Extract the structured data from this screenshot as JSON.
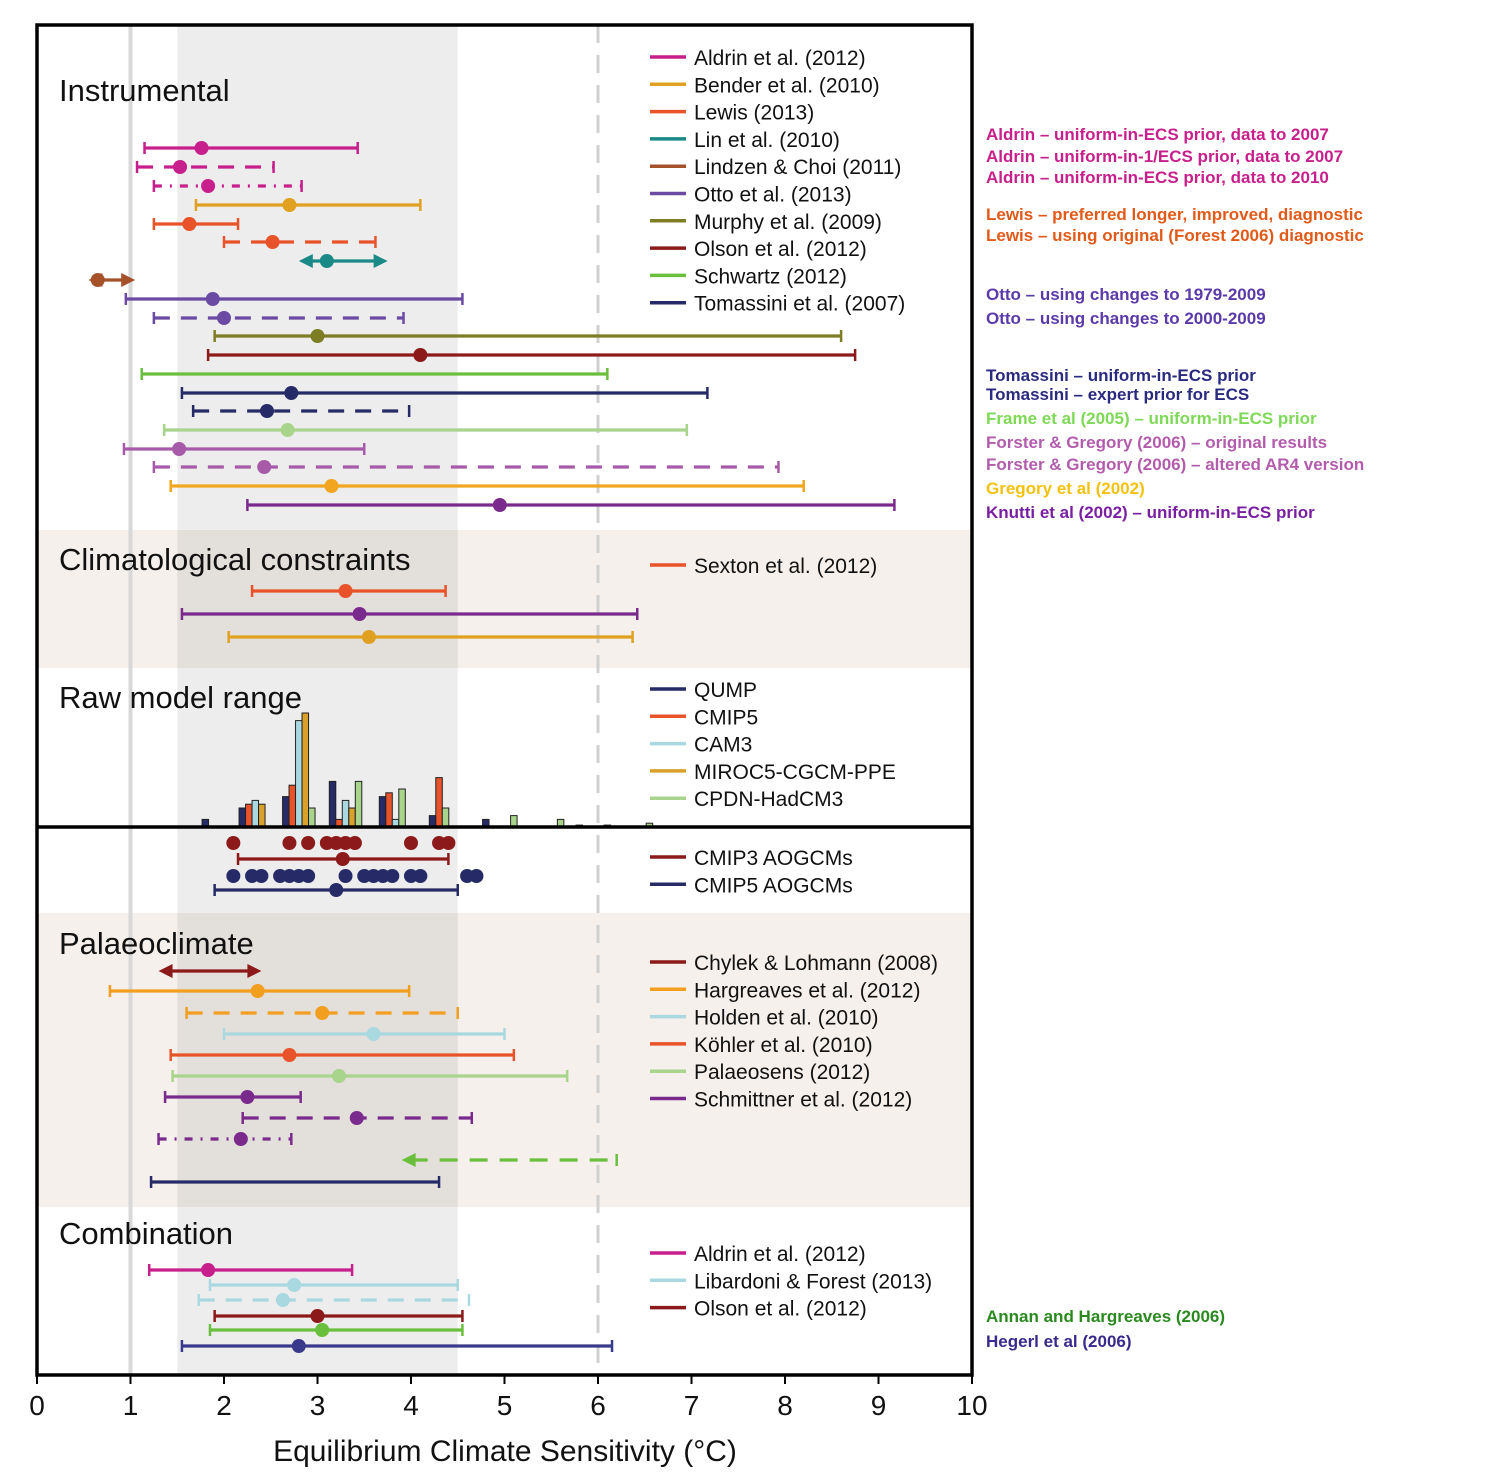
{
  "chart_data": {
    "type": "interval-plot",
    "xlabel": "Equilibrium Climate Sensitivity (°C)",
    "xlim": [
      0,
      10
    ],
    "xticks": [
      0,
      1,
      2,
      3,
      4,
      5,
      6,
      7,
      8,
      9,
      10
    ],
    "likely_range_shading": [
      1.5,
      4.5
    ],
    "reference_lines": [
      1,
      6
    ],
    "sections": [
      {
        "id": "instrumental",
        "title": "Instrumental",
        "background": "#ffffff",
        "legend": [
          {
            "label": "Aldrin et al. (2012)",
            "color": "#c71f8c"
          },
          {
            "label": "Bender et al. (2010)",
            "color": "#e0a020"
          },
          {
            "label": "Lewis (2013)",
            "color": "#e8532a"
          },
          {
            "label": "Lin et al. (2010)",
            "color": "#1a8a86"
          },
          {
            "label": "Lindzen & Choi (2011)",
            "color": "#a5522a"
          },
          {
            "label": "Otto et al. (2013)",
            "color": "#6a4aa3"
          },
          {
            "label": "Murphy et al. (2009)",
            "color": "#7d7d24"
          },
          {
            "label": "Olson et al. (2012)",
            "color": "#8c1a1a"
          },
          {
            "label": "Schwartz (2012)",
            "color": "#6abf3c"
          },
          {
            "label": "Tomassini et al. (2007)",
            "color": "#262a66"
          }
        ]
      },
      {
        "id": "climatological",
        "title": "Climatological constraints",
        "background": "#f5f0ec",
        "legend": [
          {
            "label": "Sexton et al. (2012)",
            "color": "#e8532a"
          }
        ]
      },
      {
        "id": "raw",
        "title": "Raw model range",
        "background": "#ffffff",
        "legend": [
          {
            "label": "QUMP",
            "color": "#262a66"
          },
          {
            "label": "CMIP5",
            "color": "#e8532a"
          },
          {
            "label": "CAM3",
            "color": "#aad8e0"
          },
          {
            "label": "MIROC5-CGCM-PPE",
            "color": "#d9a02a"
          },
          {
            "label": "CPDN-HadCM3",
            "color": "#a8d48c"
          }
        ],
        "extra_legend": [
          {
            "label": "CMIP3 AOGCMs",
            "color": "#8c1a1a"
          },
          {
            "label": "CMIP5 AOGCMs",
            "color": "#262a66"
          }
        ]
      },
      {
        "id": "palaeo",
        "title": "Palaeoclimate",
        "background": "#f5f0ec",
        "legend": [
          {
            "label": "Chylek & Lohmann (2008)",
            "color": "#8c1a1a"
          },
          {
            "label": "Hargreaves et al. (2012)",
            "color": "#f29e1f"
          },
          {
            "label": "Holden et al. (2010)",
            "color": "#aad8e0"
          },
          {
            "label": "Köhler et al. (2010)",
            "color": "#e8532a"
          },
          {
            "label": "Palaeosens (2012)",
            "color": "#a8d48c"
          },
          {
            "label": "Schmittner et al. (2012)",
            "color": "#7a2a8c"
          }
        ]
      },
      {
        "id": "combination",
        "title": "Combination",
        "background": "#ffffff",
        "legend": [
          {
            "label": "Aldrin et al. (2012)",
            "color": "#c71f8c"
          },
          {
            "label": "Libardoni & Forest (2013)",
            "color": "#aad8e0"
          },
          {
            "label": "Olson et al. (2012)",
            "color": "#8c1a1a"
          }
        ]
      }
    ],
    "ranges": [
      {
        "section": "instrumental",
        "row": 1,
        "color": "#c71f8c",
        "style": "solid",
        "lo": 1.15,
        "best": 1.76,
        "hi": 3.43
      },
      {
        "section": "instrumental",
        "row": 2,
        "color": "#c71f8c",
        "style": "dashed",
        "lo": 1.07,
        "best": 1.53,
        "hi": 2.53
      },
      {
        "section": "instrumental",
        "row": 3,
        "color": "#c71f8c",
        "style": "dashdot",
        "lo": 1.25,
        "best": 1.83,
        "hi": 2.83
      },
      {
        "section": "instrumental",
        "row": 4,
        "color": "#e0a020",
        "style": "solid",
        "lo": 1.7,
        "best": 2.7,
        "hi": 4.1
      },
      {
        "section": "instrumental",
        "row": 5,
        "color": "#e8532a",
        "style": "solid",
        "lo": 1.25,
        "best": 1.63,
        "hi": 2.15
      },
      {
        "section": "instrumental",
        "row": 6,
        "color": "#e8532a",
        "style": "dashed",
        "lo": 2.0,
        "best": 2.52,
        "hi": 3.62
      },
      {
        "section": "instrumental",
        "row": 7,
        "color": "#1a8a86",
        "style": "arrows",
        "lo": 2.8,
        "best": 3.1,
        "hi": 3.75
      },
      {
        "section": "instrumental",
        "row": 8,
        "color": "#a5522a",
        "style": "arrows",
        "lo": 0.55,
        "best": 0.65,
        "hi": 1.05
      },
      {
        "section": "instrumental",
        "row": 9,
        "color": "#6a4aa3",
        "style": "solid",
        "lo": 0.95,
        "best": 1.88,
        "hi": 4.55
      },
      {
        "section": "instrumental",
        "row": 10,
        "color": "#6a4aa3",
        "style": "dashed",
        "lo": 1.25,
        "best": 2.0,
        "hi": 3.92
      },
      {
        "section": "instrumental",
        "row": 11,
        "color": "#7d7d24",
        "style": "solid",
        "lo": 1.9,
        "best": 3.0,
        "hi": 8.6
      },
      {
        "section": "instrumental",
        "row": 12,
        "color": "#8c1a1a",
        "style": "solid",
        "lo": 1.83,
        "best": 4.1,
        "hi": 8.75
      },
      {
        "section": "instrumental",
        "row": 13,
        "color": "#6abf3c",
        "style": "solid",
        "lo": 1.12,
        "best": null,
        "hi": 6.1
      },
      {
        "section": "instrumental",
        "row": 14,
        "color": "#262a66",
        "style": "solid",
        "lo": 1.55,
        "best": 2.72,
        "hi": 7.17
      },
      {
        "section": "instrumental",
        "row": 15,
        "color": "#262a66",
        "style": "dashed",
        "lo": 1.67,
        "best": 2.46,
        "hi": 3.98
      },
      {
        "section": "instrumental",
        "row": 16,
        "color": "#a8d48c",
        "style": "solid",
        "lo": 1.36,
        "best": 2.68,
        "hi": 6.95
      },
      {
        "section": "instrumental",
        "row": 17,
        "color": "#a65aa8",
        "style": "solid",
        "lo": 0.93,
        "best": 1.52,
        "hi": 3.5
      },
      {
        "section": "instrumental",
        "row": 18,
        "color": "#a65aa8",
        "style": "dashed",
        "lo": 1.25,
        "best": 2.43,
        "hi": 7.93
      },
      {
        "section": "instrumental",
        "row": 19,
        "color": "#f2a51f",
        "style": "solid",
        "lo": 1.43,
        "best": 3.15,
        "hi": 8.2
      },
      {
        "section": "instrumental",
        "row": 20,
        "color": "#7a2a8c",
        "style": "solid",
        "lo": 2.25,
        "best": 4.95,
        "hi": 9.17
      },
      {
        "section": "climatological",
        "row": 1,
        "color": "#e8532a",
        "style": "solid",
        "lo": 2.3,
        "best": 3.3,
        "hi": 4.37
      },
      {
        "section": "climatological",
        "row": 2,
        "color": "#7a2a8c",
        "style": "solid",
        "lo": 1.55,
        "best": 3.45,
        "hi": 6.42
      },
      {
        "section": "climatological",
        "row": 3,
        "color": "#e0a020",
        "style": "solid",
        "lo": 2.05,
        "best": 3.55,
        "hi": 6.37
      },
      {
        "section": "raw",
        "row": 1,
        "color": "#8c1a1a",
        "style": "solid",
        "lo": 2.15,
        "best": 3.27,
        "hi": 4.4
      },
      {
        "section": "raw",
        "row": 2,
        "color": "#262a66",
        "style": "solid",
        "lo": 1.9,
        "best": 3.2,
        "hi": 4.5
      },
      {
        "section": "palaeo",
        "row": 1,
        "color": "#8c1a1a",
        "style": "arrows",
        "lo": 1.3,
        "best": null,
        "hi": 2.4
      },
      {
        "section": "palaeo",
        "row": 2,
        "color": "#f29e1f",
        "style": "solid",
        "lo": 0.78,
        "best": 2.36,
        "hi": 3.98
      },
      {
        "section": "palaeo",
        "row": 3,
        "color": "#f29e1f",
        "style": "dashed",
        "lo": 1.6,
        "best": 3.05,
        "hi": 4.5
      },
      {
        "section": "palaeo",
        "row": 4,
        "color": "#aad8e0",
        "style": "solid",
        "lo": 2.0,
        "best": 3.6,
        "hi": 5.0
      },
      {
        "section": "palaeo",
        "row": 5,
        "color": "#e8532a",
        "style": "solid",
        "lo": 1.43,
        "best": 2.7,
        "hi": 5.1
      },
      {
        "section": "palaeo",
        "row": 6,
        "color": "#a8d48c",
        "style": "solid",
        "lo": 1.45,
        "best": 3.23,
        "hi": 5.67
      },
      {
        "section": "palaeo",
        "row": 7,
        "color": "#7a2a8c",
        "style": "solid",
        "lo": 1.37,
        "best": 2.25,
        "hi": 2.82
      },
      {
        "section": "palaeo",
        "row": 8,
        "color": "#7a2a8c",
        "style": "dashed",
        "lo": 2.2,
        "best": 3.42,
        "hi": 4.65
      },
      {
        "section": "palaeo",
        "row": 9,
        "color": "#7a2a8c",
        "style": "dashdot",
        "lo": 1.3,
        "best": 2.18,
        "hi": 2.72
      },
      {
        "section": "palaeo",
        "row": 10,
        "color": "#6abf3c",
        "style": "dashed-left-arrow",
        "lo": 3.9,
        "best": null,
        "hi": 6.2
      },
      {
        "section": "palaeo",
        "row": 11,
        "color": "#262a66",
        "style": "solid",
        "lo": 1.22,
        "best": null,
        "hi": 4.3
      },
      {
        "section": "combination",
        "row": 1,
        "color": "#c71f8c",
        "style": "solid",
        "lo": 1.2,
        "best": 1.83,
        "hi": 3.37
      },
      {
        "section": "combination",
        "row": 2,
        "color": "#aad8e0",
        "style": "solid",
        "lo": 1.85,
        "best": 2.75,
        "hi": 4.5
      },
      {
        "section": "combination",
        "row": 3,
        "color": "#aad8e0",
        "style": "dashed",
        "lo": 1.73,
        "best": 2.63,
        "hi": 4.62
      },
      {
        "section": "combination",
        "row": 4,
        "color": "#8c1a1a",
        "style": "solid",
        "lo": 1.9,
        "best": 3.0,
        "hi": 4.55
      },
      {
        "section": "combination",
        "row": 5,
        "color": "#6abf3c",
        "style": "solid",
        "lo": 1.85,
        "best": 3.05,
        "hi": 4.55
      },
      {
        "section": "combination",
        "row": 6,
        "color": "#3a3a8c",
        "style": "solid",
        "lo": 1.55,
        "best": 2.8,
        "hi": 6.15
      }
    ],
    "histogram": {
      "series_order": [
        "QUMP",
        "CMIP5",
        "CAM3",
        "MIROC5-CGCM-PPE",
        "CPDN-HadCM3"
      ],
      "bins": [
        {
          "x": 1.8,
          "QUMP": 2
        },
        {
          "x": 2.3,
          "QUMP": 5,
          "CMIP5": 6,
          "CAM3": 7,
          "MIROC5-CGCM-PPE": 6
        },
        {
          "x": 2.8,
          "QUMP": 8,
          "CMIP5": 11,
          "CAM3": 28,
          "MIROC5-CGCM-PPE": 30,
          "CPDN-HadCM3": 5
        },
        {
          "x": 3.3,
          "QUMP": 12,
          "CMIP5": 2,
          "CAM3": 7,
          "MIROC5-CGCM-PPE": 5,
          "CPDN-HadCM3": 12
        },
        {
          "x": 3.8,
          "QUMP": 8,
          "CMIP5": 9,
          "CAM3": 2,
          "CPDN-HadCM3": 10
        },
        {
          "x": 4.3,
          "QUMP": 3,
          "CMIP5": 13,
          "CPDN-HadCM3": 5
        },
        {
          "x": 4.8,
          "QUMP": 2
        },
        {
          "x": 5.1,
          "CPDN-HadCM3": 3
        },
        {
          "x": 5.6,
          "CPDN-HadCM3": 2
        },
        {
          "x": 5.8,
          "QUMP": 0.5
        },
        {
          "x": 6.1,
          "QUMP": 0.5
        },
        {
          "x": 6.55,
          "CPDN-HadCM3": 1
        }
      ]
    },
    "aogcm_dots": {
      "CMIP3": [
        2.1,
        2.7,
        2.9,
        3.1,
        3.2,
        3.3,
        3.4,
        4.0,
        4.3,
        4.4
      ],
      "CMIP5": [
        2.1,
        2.3,
        2.4,
        2.6,
        2.7,
        2.8,
        2.9,
        3.3,
        3.5,
        3.6,
        3.7,
        3.8,
        4.0,
        4.1,
        4.6,
        4.7
      ]
    }
  },
  "annotations": [
    {
      "text": "Aldrin – uniform-in-ECS prior, data to 2007",
      "color": "#c71f8c"
    },
    {
      "text": "Aldrin – uniform-in-1/ECS prior, data to 2007",
      "color": "#c71f8c"
    },
    {
      "text": "Aldrin – uniform-in-ECS prior, data to 2010",
      "color": "#c71f8c"
    },
    {
      "text": "Lewis – preferred longer, improved, diagnostic",
      "color": "#e05a1a"
    },
    {
      "text": "Lewis – using original (Forest 2006) diagnostic",
      "color": "#e05a1a"
    },
    {
      "text": "Otto – using changes to 1979-2009",
      "color": "#5a3aa8"
    },
    {
      "text": "Otto – using changes to 2000-2009",
      "color": "#5a3aa8"
    },
    {
      "text": "Tomassini – uniform-in-ECS prior",
      "color": "#2a2a80"
    },
    {
      "text": "Tomassini – expert prior for ECS",
      "color": "#2a2a80"
    },
    {
      "text": "Frame et al (2005) – uniform-in-ECS prior",
      "color": "#7ed957"
    },
    {
      "text": "Forster & Gregory (2006) – original results",
      "color": "#b35cad"
    },
    {
      "text": "Forster & Gregory (2006) – altered AR4 version",
      "color": "#b35cad"
    },
    {
      "text": "Gregory et al (2002)",
      "color": "#f2c20f"
    },
    {
      "text": "Knutti et al (2002) – uniform-in-ECS prior",
      "color": "#7a1fa0"
    },
    {
      "text": "Annan and Hargreaves (2006)",
      "color": "#2a8a1f"
    },
    {
      "text": "Hegerl et al (2006)",
      "color": "#3a2a8c"
    }
  ]
}
